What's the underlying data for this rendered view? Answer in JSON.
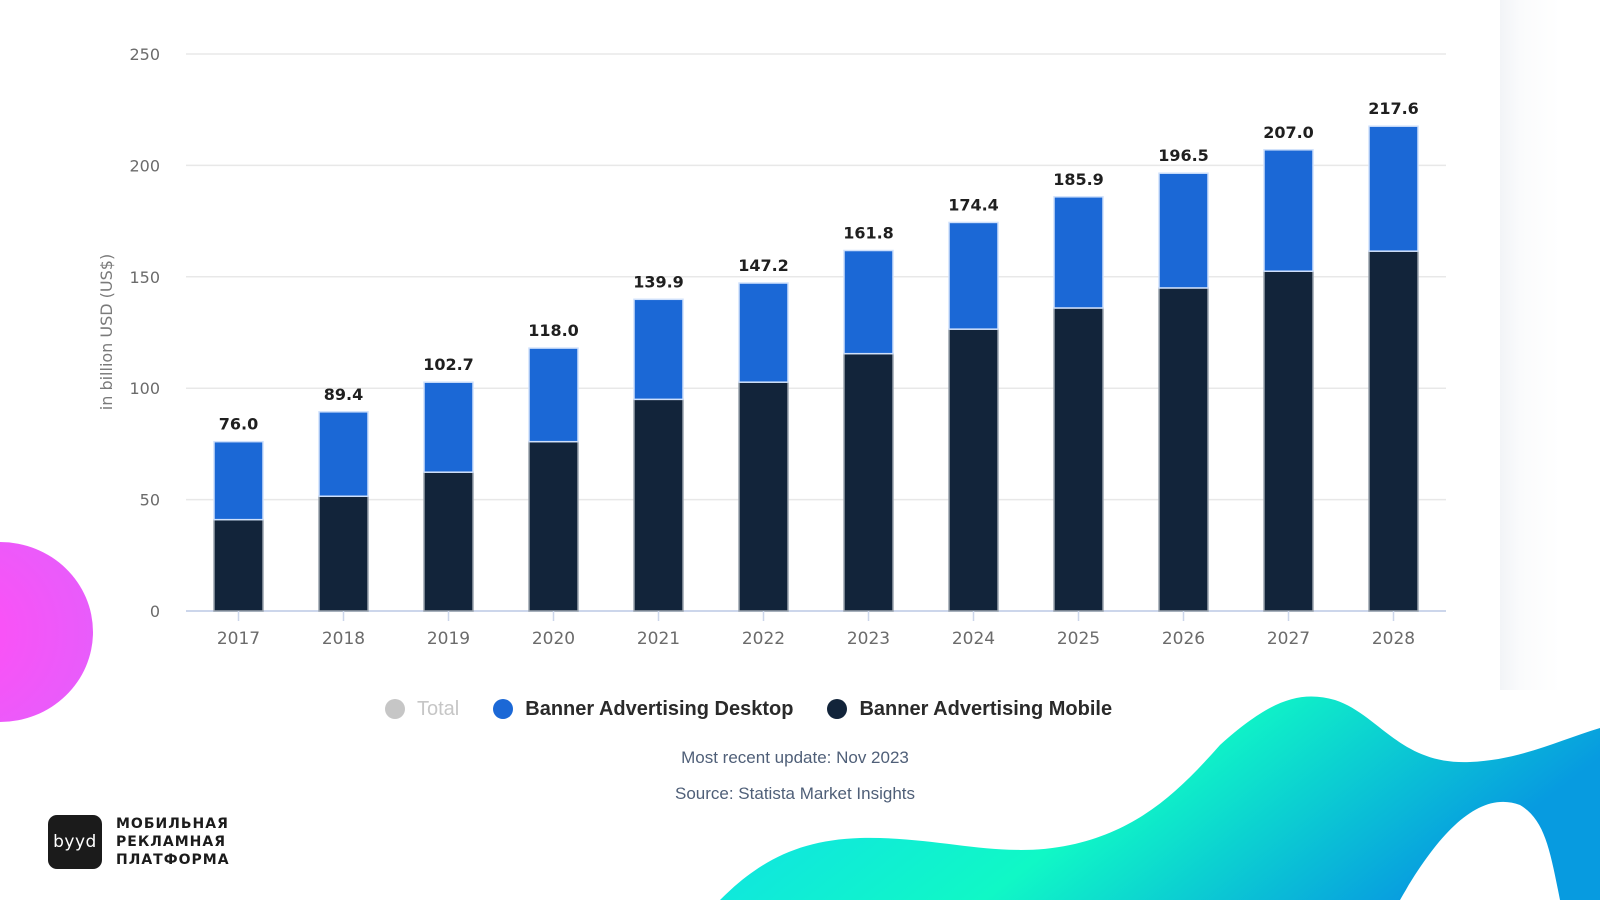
{
  "chart_data": {
    "type": "bar",
    "stacked": true,
    "title": "",
    "xlabel": "",
    "ylabel": "in billion USD (US$)",
    "ylim": [
      0,
      250
    ],
    "yticks": [
      0,
      50,
      100,
      150,
      200,
      250
    ],
    "grid": true,
    "categories": [
      "2017",
      "2018",
      "2019",
      "2020",
      "2021",
      "2022",
      "2023",
      "2024",
      "2025",
      "2026",
      "2027",
      "2028"
    ],
    "series": [
      {
        "name": "Banner Advertising Mobile",
        "color": "#12243a",
        "values": [
          41.0,
          51.5,
          62.3,
          76.0,
          95.0,
          102.7,
          115.5,
          126.5,
          136.0,
          145.0,
          152.5,
          161.5
        ]
      },
      {
        "name": "Banner Advertising Desktop",
        "color": "#1b68d6",
        "values": [
          35.0,
          37.9,
          40.4,
          42.0,
          44.9,
          44.5,
          46.3,
          47.9,
          49.9,
          51.5,
          54.5,
          56.1
        ]
      }
    ],
    "totals": [
      76.0,
      89.4,
      102.7,
      118.0,
      139.9,
      147.2,
      161.8,
      174.4,
      185.9,
      196.5,
      207.0,
      217.6
    ],
    "total_labels": [
      "76.0",
      "89.4",
      "102.7",
      "118.0",
      "139.9",
      "147.2",
      "161.8",
      "174.4",
      "185.9",
      "196.5",
      "207.0",
      "217.6"
    ],
    "legend": {
      "position": "bottom",
      "items": [
        {
          "label": "Total",
          "color": "#c6c6c6",
          "disabled": true
        },
        {
          "label": "Banner Advertising Desktop",
          "color": "#1b68d6",
          "disabled": false
        },
        {
          "label": "Banner Advertising Mobile",
          "color": "#12243a",
          "disabled": false
        }
      ]
    }
  },
  "footer": {
    "update": "Most recent update: Nov 2023",
    "source": "Source: Statista Market Insights"
  },
  "brand": {
    "logo_text": "byyd",
    "tagline": [
      "МОБИЛЬНАЯ",
      "РЕКЛАМНАЯ",
      "ПЛАТФОРМА"
    ]
  },
  "colors": {
    "decor_pink": "#f25ef9",
    "decor_teal": "#0ff5c9",
    "decor_blue": "#0aa0e2"
  }
}
